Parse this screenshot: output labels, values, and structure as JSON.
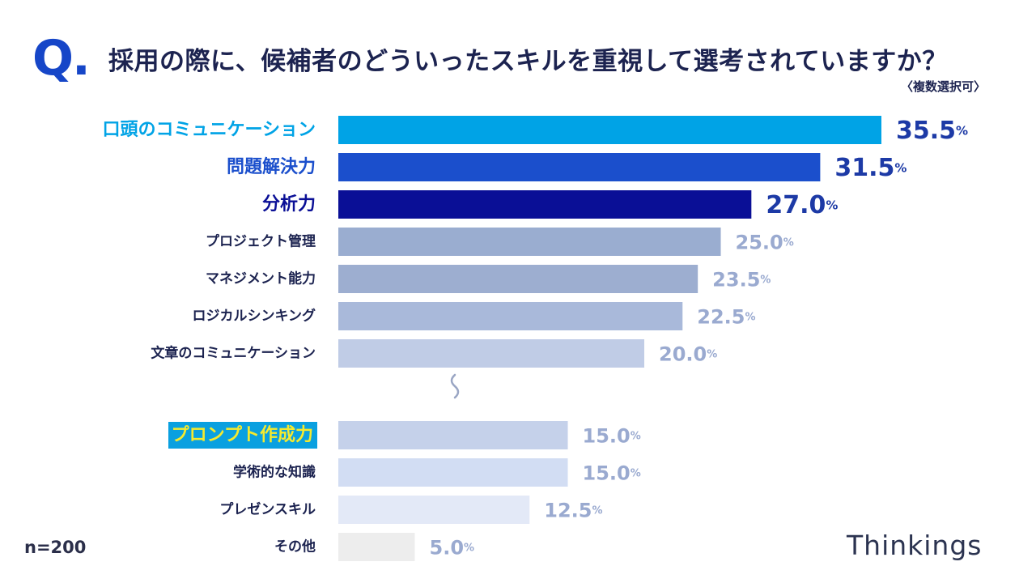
{
  "header": {
    "q_mark": "Q.",
    "title": "採用の際に、候補者のどういったスキルを重視して選考されていますか？",
    "subtitle": "〈複数選択可〉"
  },
  "footer": {
    "sample_size": "n=200",
    "brand": "Thinkings"
  },
  "chart_data": {
    "type": "bar",
    "orientation": "horizontal",
    "title": "採用の際に、候補者のどういったスキルを重視して選考されていますか？",
    "unit": "%",
    "xlim": [
      0,
      35.5
    ],
    "categories": [
      "口頭のコミュニケーション",
      "問題解決力",
      "分析力",
      "プロジェクト管理",
      "マネジメント能力",
      "ロジカルシンキング",
      "文章のコミュニケーション",
      "プロンプト作成力",
      "学術的な知識",
      "プレゼンスキル",
      "その他"
    ],
    "values": [
      35.5,
      31.5,
      27.0,
      25.0,
      23.5,
      22.5,
      20.0,
      15.0,
      15.0,
      12.5,
      5.0
    ],
    "value_labels": [
      "35.5",
      "31.5",
      "27.0",
      "25.0",
      "23.5",
      "22.5",
      "20.0",
      "15.0",
      "15.0",
      "12.5",
      "5.0"
    ],
    "bar_colors": [
      "#00a3e6",
      "#1b4fcc",
      "#0a0f96",
      "#9aadd0",
      "#9daed0",
      "#a9b9da",
      "#c0cce6",
      "#c5d1ea",
      "#d2ddf3",
      "#e3e9f7",
      "#ededed"
    ],
    "label_colors": [
      "#00a3e6",
      "#1b4fcc",
      "#0a0f96",
      "#1c2350",
      "#1c2350",
      "#1c2350",
      "#1c2350",
      "#f5ea2e",
      "#1c2350",
      "#1c2350",
      "#1c2350"
    ],
    "value_colors": [
      "#1d3aa6",
      "#1d3aa6",
      "#1d3aa6",
      "#9aaad0",
      "#9aaad0",
      "#9aaad0",
      "#9aaad0",
      "#9aaad0",
      "#9aaad0",
      "#9aaad0",
      "#9aaad0"
    ],
    "highlight_bg": "#0aa0e0",
    "break_after_index": 6
  }
}
